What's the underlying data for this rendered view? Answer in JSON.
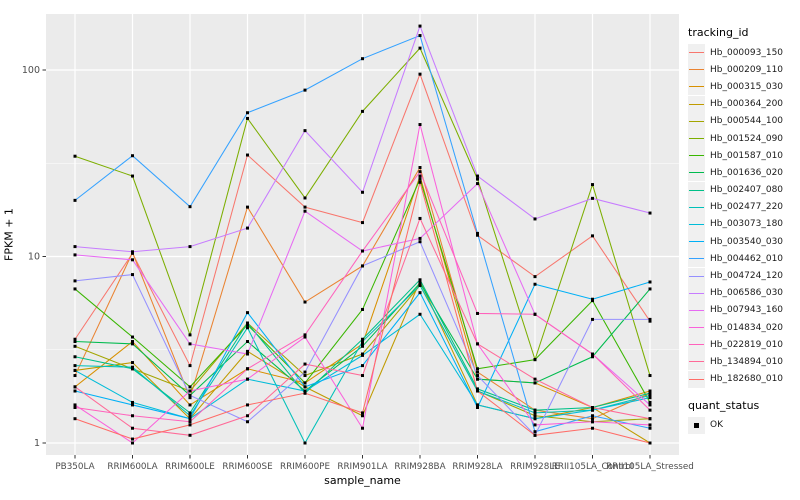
{
  "chart_data": {
    "type": "line",
    "title": "",
    "xlabel": "sample_name",
    "ylabel": "FPKM + 1",
    "y_scale": "log10",
    "y_ticks": [
      1,
      10,
      100
    ],
    "ylim": [
      0.9,
      200
    ],
    "grid": "major-and-minor, white on grey panel",
    "legend_position": "right",
    "legend_title": "tracking_id",
    "point_marker": "small-black-square",
    "categories": [
      "PB350LA",
      "RRIM600LA",
      "RRIM600LE",
      "RRIM600SE",
      "RRIM600PE",
      "RRIM901LA",
      "RRIM928BA",
      "RRIM928LA",
      "RRIM928LE",
      "RRII105LA_Control",
      "RRII105LA_Stressed"
    ],
    "series": [
      {
        "name": "Hb_000093_150",
        "color": "#F8766D",
        "values": [
          3.6,
          10.4,
          2.6,
          35,
          18.4,
          15.2,
          95,
          13.0,
          7.8,
          12.9,
          4.5
        ]
      },
      {
        "name": "Hb_000209_110",
        "color": "#EA8331",
        "values": [
          2.3,
          10.5,
          1.75,
          18.4,
          5.7,
          8.9,
          30,
          2.4,
          1.5,
          1.35,
          1.85
        ]
      },
      {
        "name": "Hb_000315_030",
        "color": "#D89000",
        "values": [
          2.0,
          3.5,
          1.6,
          2.5,
          2.1,
          3.4,
          27,
          2.2,
          2.1,
          1.55,
          1.9
        ]
      },
      {
        "name": "Hb_000364_200",
        "color": "#C09B00",
        "values": [
          2.45,
          2.7,
          1.35,
          3.1,
          2.0,
          1.4,
          7.4,
          1.6,
          1.35,
          1.55,
          1.0
        ]
      },
      {
        "name": "Hb_000544_100",
        "color": "#A3A500",
        "values": [
          3.3,
          2.5,
          1.9,
          4.4,
          2.3,
          3.0,
          7.0,
          1.9,
          1.4,
          1.3,
          1.35
        ]
      },
      {
        "name": "Hb_001524_090",
        "color": "#7CAE00",
        "values": [
          34.5,
          27,
          3.8,
          55,
          20.6,
          60,
          131,
          26,
          2.8,
          24.3,
          2.3
        ]
      },
      {
        "name": "Hb_001587_010",
        "color": "#39B600",
        "values": [
          6.7,
          3.7,
          2.0,
          4.3,
          2.1,
          5.2,
          26,
          2.5,
          2.8,
          5.8,
          1.65
        ]
      },
      {
        "name": "Hb_001636_020",
        "color": "#00BB4E",
        "values": [
          3.5,
          3.4,
          1.8,
          3.5,
          1.9,
          3.3,
          7.2,
          2.2,
          2.1,
          2.9,
          6.7
        ]
      },
      {
        "name": "Hb_002407_080",
        "color": "#00C087",
        "values": [
          2.9,
          2.5,
          1.45,
          4.4,
          1.85,
          3.6,
          7.5,
          1.95,
          1.5,
          1.55,
          1.85
        ]
      },
      {
        "name": "Hb_002477_220",
        "color": "#00C0B8",
        "values": [
          2.6,
          2.55,
          1.4,
          4.15,
          1.0,
          3.5,
          7.0,
          1.9,
          1.45,
          1.5,
          1.8
        ]
      },
      {
        "name": "Hb_003073_180",
        "color": "#00BCD8",
        "values": [
          2.45,
          1.65,
          1.35,
          2.2,
          1.9,
          2.95,
          4.9,
          1.6,
          1.35,
          1.5,
          1.75
        ]
      },
      {
        "name": "Hb_003540_030",
        "color": "#00B0F6",
        "values": [
          1.9,
          1.6,
          1.35,
          5.0,
          2.0,
          2.6,
          6.4,
          1.55,
          7.1,
          5.9,
          7.3
        ]
      },
      {
        "name": "Hb_004462_010",
        "color": "#35A2FF",
        "values": [
          20,
          34.7,
          18.5,
          59,
          78,
          115,
          153,
          13.3,
          1.15,
          1.4,
          1.2
        ]
      },
      {
        "name": "Hb_004724_120",
        "color": "#9590FF",
        "values": [
          7.4,
          8.0,
          1.8,
          1.3,
          2.4,
          8.9,
          12,
          2.3,
          1.1,
          4.6,
          4.6
        ]
      },
      {
        "name": "Hb_006586_030",
        "color": "#C77CFF",
        "values": [
          11.3,
          10.6,
          11.3,
          14.2,
          47.3,
          22.1,
          172,
          27,
          15.9,
          20.5,
          17.1
        ]
      },
      {
        "name": "Hb_007943_160",
        "color": "#E76BF3",
        "values": [
          10.2,
          9.6,
          3.4,
          3.0,
          17.5,
          10.7,
          12.5,
          24.6,
          4.9,
          3.0,
          1.6
        ]
      },
      {
        "name": "Hb_014834_020",
        "color": "#FA62DB",
        "values": [
          1.6,
          1.0,
          1.9,
          2.2,
          3.7,
          1.2,
          51,
          3.4,
          1.25,
          1.3,
          1.25
        ]
      },
      {
        "name": "Hb_022819_010",
        "color": "#FF62BC",
        "values": [
          1.55,
          1.4,
          1.3,
          2.5,
          3.8,
          10.7,
          28.5,
          4.95,
          4.9,
          3.0,
          1.5
        ]
      },
      {
        "name": "Hb_134894_010",
        "color": "#FF6A98",
        "values": [
          2.0,
          1.2,
          1.1,
          1.4,
          2.65,
          2.3,
          16,
          3.4,
          2.2,
          1.55,
          1.35
        ]
      },
      {
        "name": "Hb_182680_010",
        "color": "#FF6C67",
        "values": [
          1.35,
          1.05,
          1.25,
          1.6,
          1.85,
          1.45,
          25,
          1.9,
          1.1,
          1.2,
          1.0
        ]
      }
    ],
    "quant_legend": {
      "title": "quant_status",
      "items": [
        {
          "label": "OK",
          "marker": "filled-square",
          "color": "#000000"
        }
      ]
    },
    "colors": {
      "panel_background": "#EBEBEB",
      "gridline": "#FFFFFF",
      "tick_text": "#4D4D4D",
      "marker": "#000000"
    }
  }
}
